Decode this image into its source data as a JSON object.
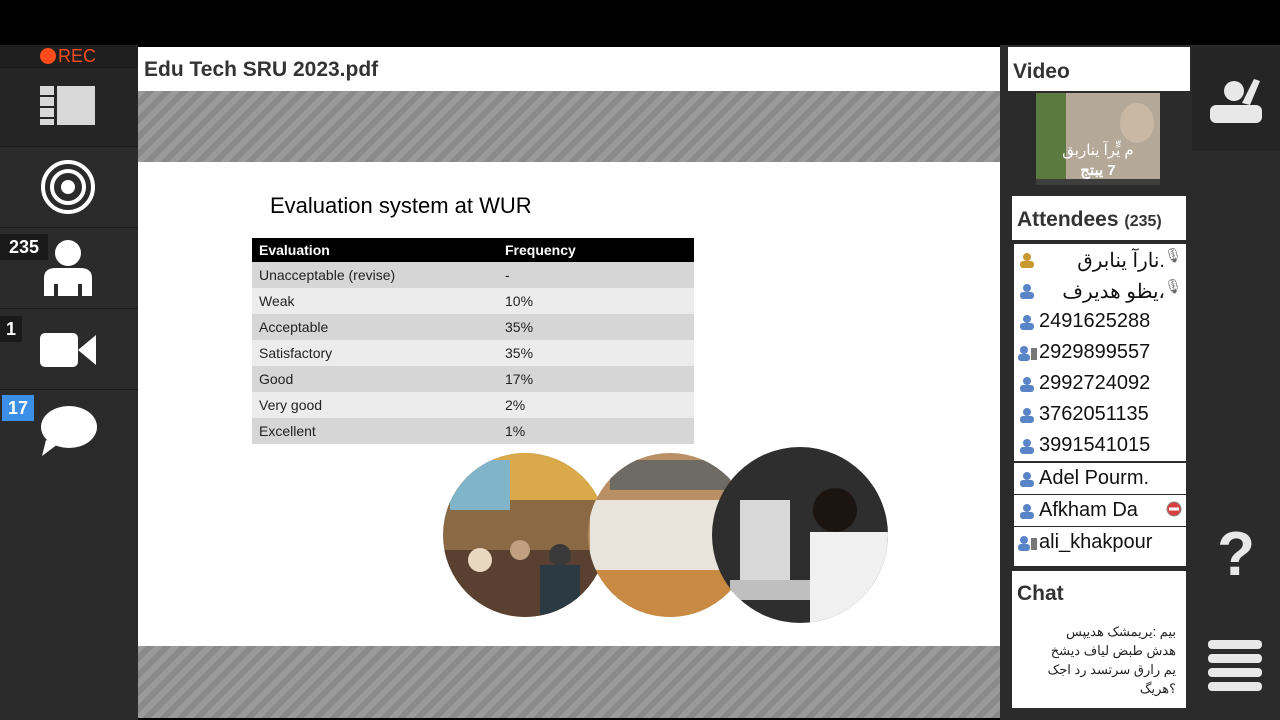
{
  "recorder": {
    "label": "REC",
    "color": "#ff4a1c"
  },
  "left_rail": {
    "layout_icon": "layout-icon",
    "broadcast_icon": "broadcast-icon",
    "attendees": {
      "count": "235",
      "icon": "person-icon"
    },
    "cameras": {
      "count": "1",
      "icon": "camera-icon"
    },
    "chat": {
      "count": "17",
      "icon": "chat-bubble-icon"
    }
  },
  "document": {
    "title": "Edu Tech SRU 2023.pdf",
    "slide": {
      "heading": "Evaluation system at WUR",
      "table": {
        "headers": [
          "Evaluation",
          "Frequency"
        ],
        "rows": [
          [
            "Unacceptable (revise)",
            "-"
          ],
          [
            "Weak",
            "10%"
          ],
          [
            "Acceptable",
            "35%"
          ],
          [
            "Satisfactory",
            "35%"
          ],
          [
            "Good",
            "17%"
          ],
          [
            "Very good",
            "2%"
          ],
          [
            "Excellent",
            "1%"
          ]
        ]
      }
    }
  },
  "video_panel": {
    "title": "Video",
    "caption_line1": "م یٍّرآ یناربق",
    "caption_line2": "7 یبتج"
  },
  "attendees_panel": {
    "title": "Attendees",
    "count": "(235)",
    "items": [
      {
        "name": ".نارآ ينابرق",
        "icon": "presenter-icon"
      },
      {
        "name": "،یظو هدیرف",
        "icon": "user-icon"
      },
      {
        "name": "2491625288",
        "icon": "user-icon"
      },
      {
        "name": "2929899557",
        "icon": "phone-user-icon"
      },
      {
        "name": "2992724092",
        "icon": "user-icon"
      },
      {
        "name": "3762051135",
        "icon": "user-icon"
      },
      {
        "name": "3991541015",
        "icon": "user-icon"
      },
      {
        "name": "Adel Pourm.",
        "icon": "user-icon"
      },
      {
        "name": "Afkham Da",
        "icon": "user-icon"
      },
      {
        "name": "ali_khakpour",
        "icon": "phone-user-icon"
      }
    ]
  },
  "chat_panel": {
    "title": "Chat",
    "lines": [
      "بیم :یریمشک هدیپس",
      "هدش طبض لیاف دیشخ",
      "یم رارق سرتسد رد اجک",
      "؟هریگ"
    ]
  },
  "right_rail": {
    "raise_hand_icon": "raise-hand-icon",
    "help_label": "?",
    "menu_icon": "hamburger-menu-icon"
  }
}
